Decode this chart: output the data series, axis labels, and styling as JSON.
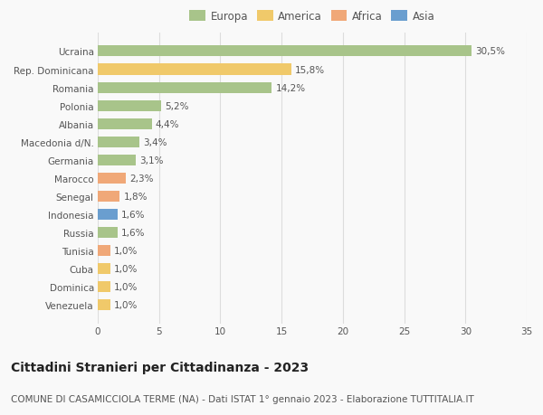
{
  "categories": [
    "Ucraina",
    "Rep. Dominicana",
    "Romania",
    "Polonia",
    "Albania",
    "Macedonia d/N.",
    "Germania",
    "Marocco",
    "Senegal",
    "Indonesia",
    "Russia",
    "Tunisia",
    "Cuba",
    "Dominica",
    "Venezuela"
  ],
  "values": [
    30.5,
    15.8,
    14.2,
    5.2,
    4.4,
    3.4,
    3.1,
    2.3,
    1.8,
    1.6,
    1.6,
    1.0,
    1.0,
    1.0,
    1.0
  ],
  "labels": [
    "30,5%",
    "15,8%",
    "14,2%",
    "5,2%",
    "4,4%",
    "3,4%",
    "3,1%",
    "2,3%",
    "1,8%",
    "1,6%",
    "1,6%",
    "1,0%",
    "1,0%",
    "1,0%",
    "1,0%"
  ],
  "colors": [
    "#a8c48a",
    "#f0c96a",
    "#a8c48a",
    "#a8c48a",
    "#a8c48a",
    "#a8c48a",
    "#a8c48a",
    "#f0a878",
    "#f0a878",
    "#6a9ecf",
    "#a8c48a",
    "#f0a878",
    "#f0c96a",
    "#f0c96a",
    "#f0c96a"
  ],
  "legend": [
    {
      "label": "Europa",
      "color": "#a8c48a"
    },
    {
      "label": "America",
      "color": "#f0c96a"
    },
    {
      "label": "Africa",
      "color": "#f0a878"
    },
    {
      "label": "Asia",
      "color": "#6a9ecf"
    }
  ],
  "xlim": [
    0,
    35
  ],
  "xticks": [
    0,
    5,
    10,
    15,
    20,
    25,
    30,
    35
  ],
  "title": "Cittadini Stranieri per Cittadinanza - 2023",
  "subtitle": "COMUNE DI CASAMICCIOLA TERME (NA) - Dati ISTAT 1° gennaio 2023 - Elaborazione TUTTITALIA.IT",
  "background_color": "#f9f9f9",
  "grid_color": "#dddddd",
  "bar_height": 0.6,
  "title_fontsize": 10,
  "subtitle_fontsize": 7.5,
  "tick_fontsize": 7.5,
  "label_fontsize": 7.5,
  "legend_fontsize": 8.5
}
